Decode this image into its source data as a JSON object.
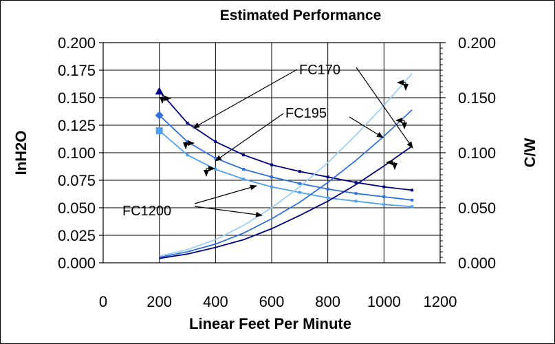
{
  "chart_data": {
    "type": "line",
    "title": "Estimated Performance",
    "xlabel": "Linear Feet Per Minute",
    "ylabel_left": "InH2O",
    "ylabel_right": "C/W",
    "xlim": [
      0,
      1200
    ],
    "ylim_left": [
      0,
      0.2
    ],
    "ylim_right": [
      0,
      0.2
    ],
    "x_ticks": [
      "0",
      "200",
      "400",
      "600",
      "800",
      "1000",
      "1200"
    ],
    "y_ticks_left": [
      "0.000",
      "0.025",
      "0.050",
      "0.075",
      "0.100",
      "0.125",
      "0.150",
      "0.175",
      "0.200"
    ],
    "y_ticks_right": [
      "0.000",
      "0.050",
      "0.100",
      "0.150",
      "0.200"
    ],
    "grid": true,
    "x": [
      200,
      300,
      400,
      500,
      600,
      700,
      800,
      900,
      1000,
      1100
    ],
    "series": [
      {
        "axis": "right",
        "color": "#00007f",
        "marker": "triangle",
        "values": [
          0.156,
          0.127,
          0.11,
          0.098,
          0.089,
          0.083,
          0.078,
          0.073,
          0.069,
          0.066
        ]
      },
      {
        "axis": "right",
        "color": "#2f6fe0",
        "marker": "diamond",
        "values": [
          0.134,
          0.11,
          0.095,
          0.085,
          0.078,
          0.072,
          0.067,
          0.063,
          0.06,
          0.057
        ]
      },
      {
        "axis": "right",
        "color": "#4da0f0",
        "marker": "square",
        "values": [
          0.12,
          0.098,
          0.085,
          0.076,
          0.069,
          0.064,
          0.059,
          0.056,
          0.053,
          0.051
        ]
      },
      {
        "axis": "left",
        "color": "#9ccff7",
        "marker": "none",
        "values": [
          0.006,
          0.012,
          0.021,
          0.034,
          0.05,
          0.069,
          0.091,
          0.116,
          0.143,
          0.172
        ]
      },
      {
        "axis": "left",
        "color": "#2f6fe0",
        "marker": "none",
        "values": [
          0.005,
          0.01,
          0.017,
          0.027,
          0.04,
          0.055,
          0.073,
          0.093,
          0.115,
          0.139
        ]
      },
      {
        "axis": "left",
        "color": "#00007f",
        "marker": "none",
        "values": [
          0.004,
          0.008,
          0.014,
          0.021,
          0.031,
          0.043,
          0.056,
          0.071,
          0.088,
          0.106
        ]
      }
    ],
    "annotations": [
      "FC170",
      "FC195",
      "FC1200"
    ]
  }
}
